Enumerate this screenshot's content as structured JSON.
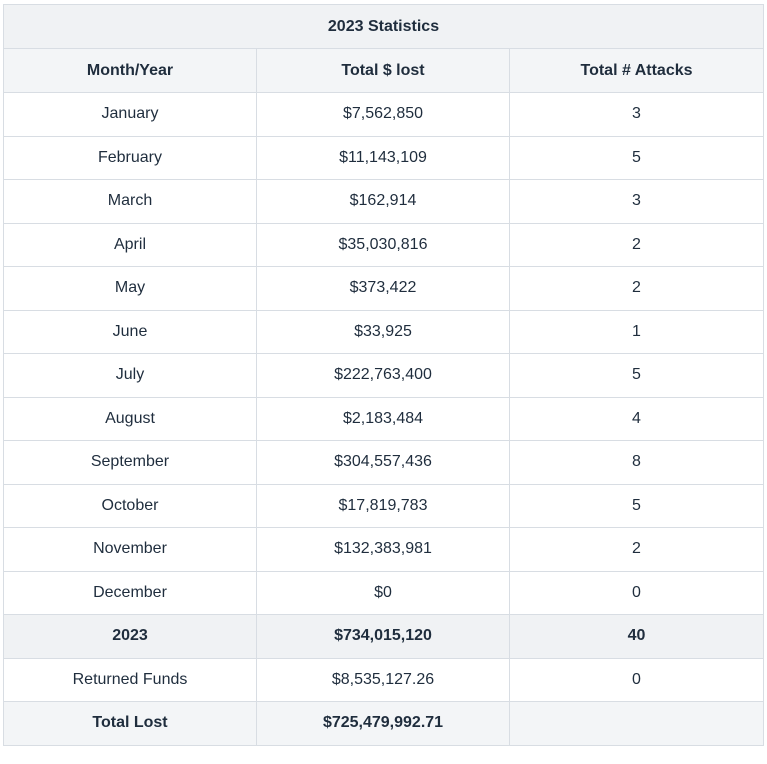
{
  "table": {
    "caption": "2023 Statistics",
    "headers": [
      "Month/Year",
      "Total $ lost",
      "Total # Attacks"
    ],
    "rows": [
      [
        "January",
        "$7,562,850",
        "3"
      ],
      [
        "February",
        "$11,143,109",
        "5"
      ],
      [
        "March",
        "$162,914",
        "3"
      ],
      [
        "April",
        "$35,030,816",
        "2"
      ],
      [
        "May",
        "$373,422",
        "2"
      ],
      [
        "June",
        "$33,925",
        "1"
      ],
      [
        "July",
        "$222,763,400",
        "5"
      ],
      [
        "August",
        "$2,183,484",
        "4"
      ],
      [
        "September",
        "$304,557,436",
        "8"
      ],
      [
        "October",
        "$17,819,783",
        "5"
      ],
      [
        "November",
        "$132,383,981",
        "2"
      ],
      [
        "December",
        "$0",
        "0"
      ]
    ],
    "summary": {
      "year_row": [
        "2023",
        "$734,015,120",
        "40"
      ],
      "returned_row": [
        "Returned Funds",
        "$8,535,127.26",
        "0"
      ],
      "total_row": [
        "Total Lost",
        "$725,479,992.71",
        ""
      ]
    }
  }
}
